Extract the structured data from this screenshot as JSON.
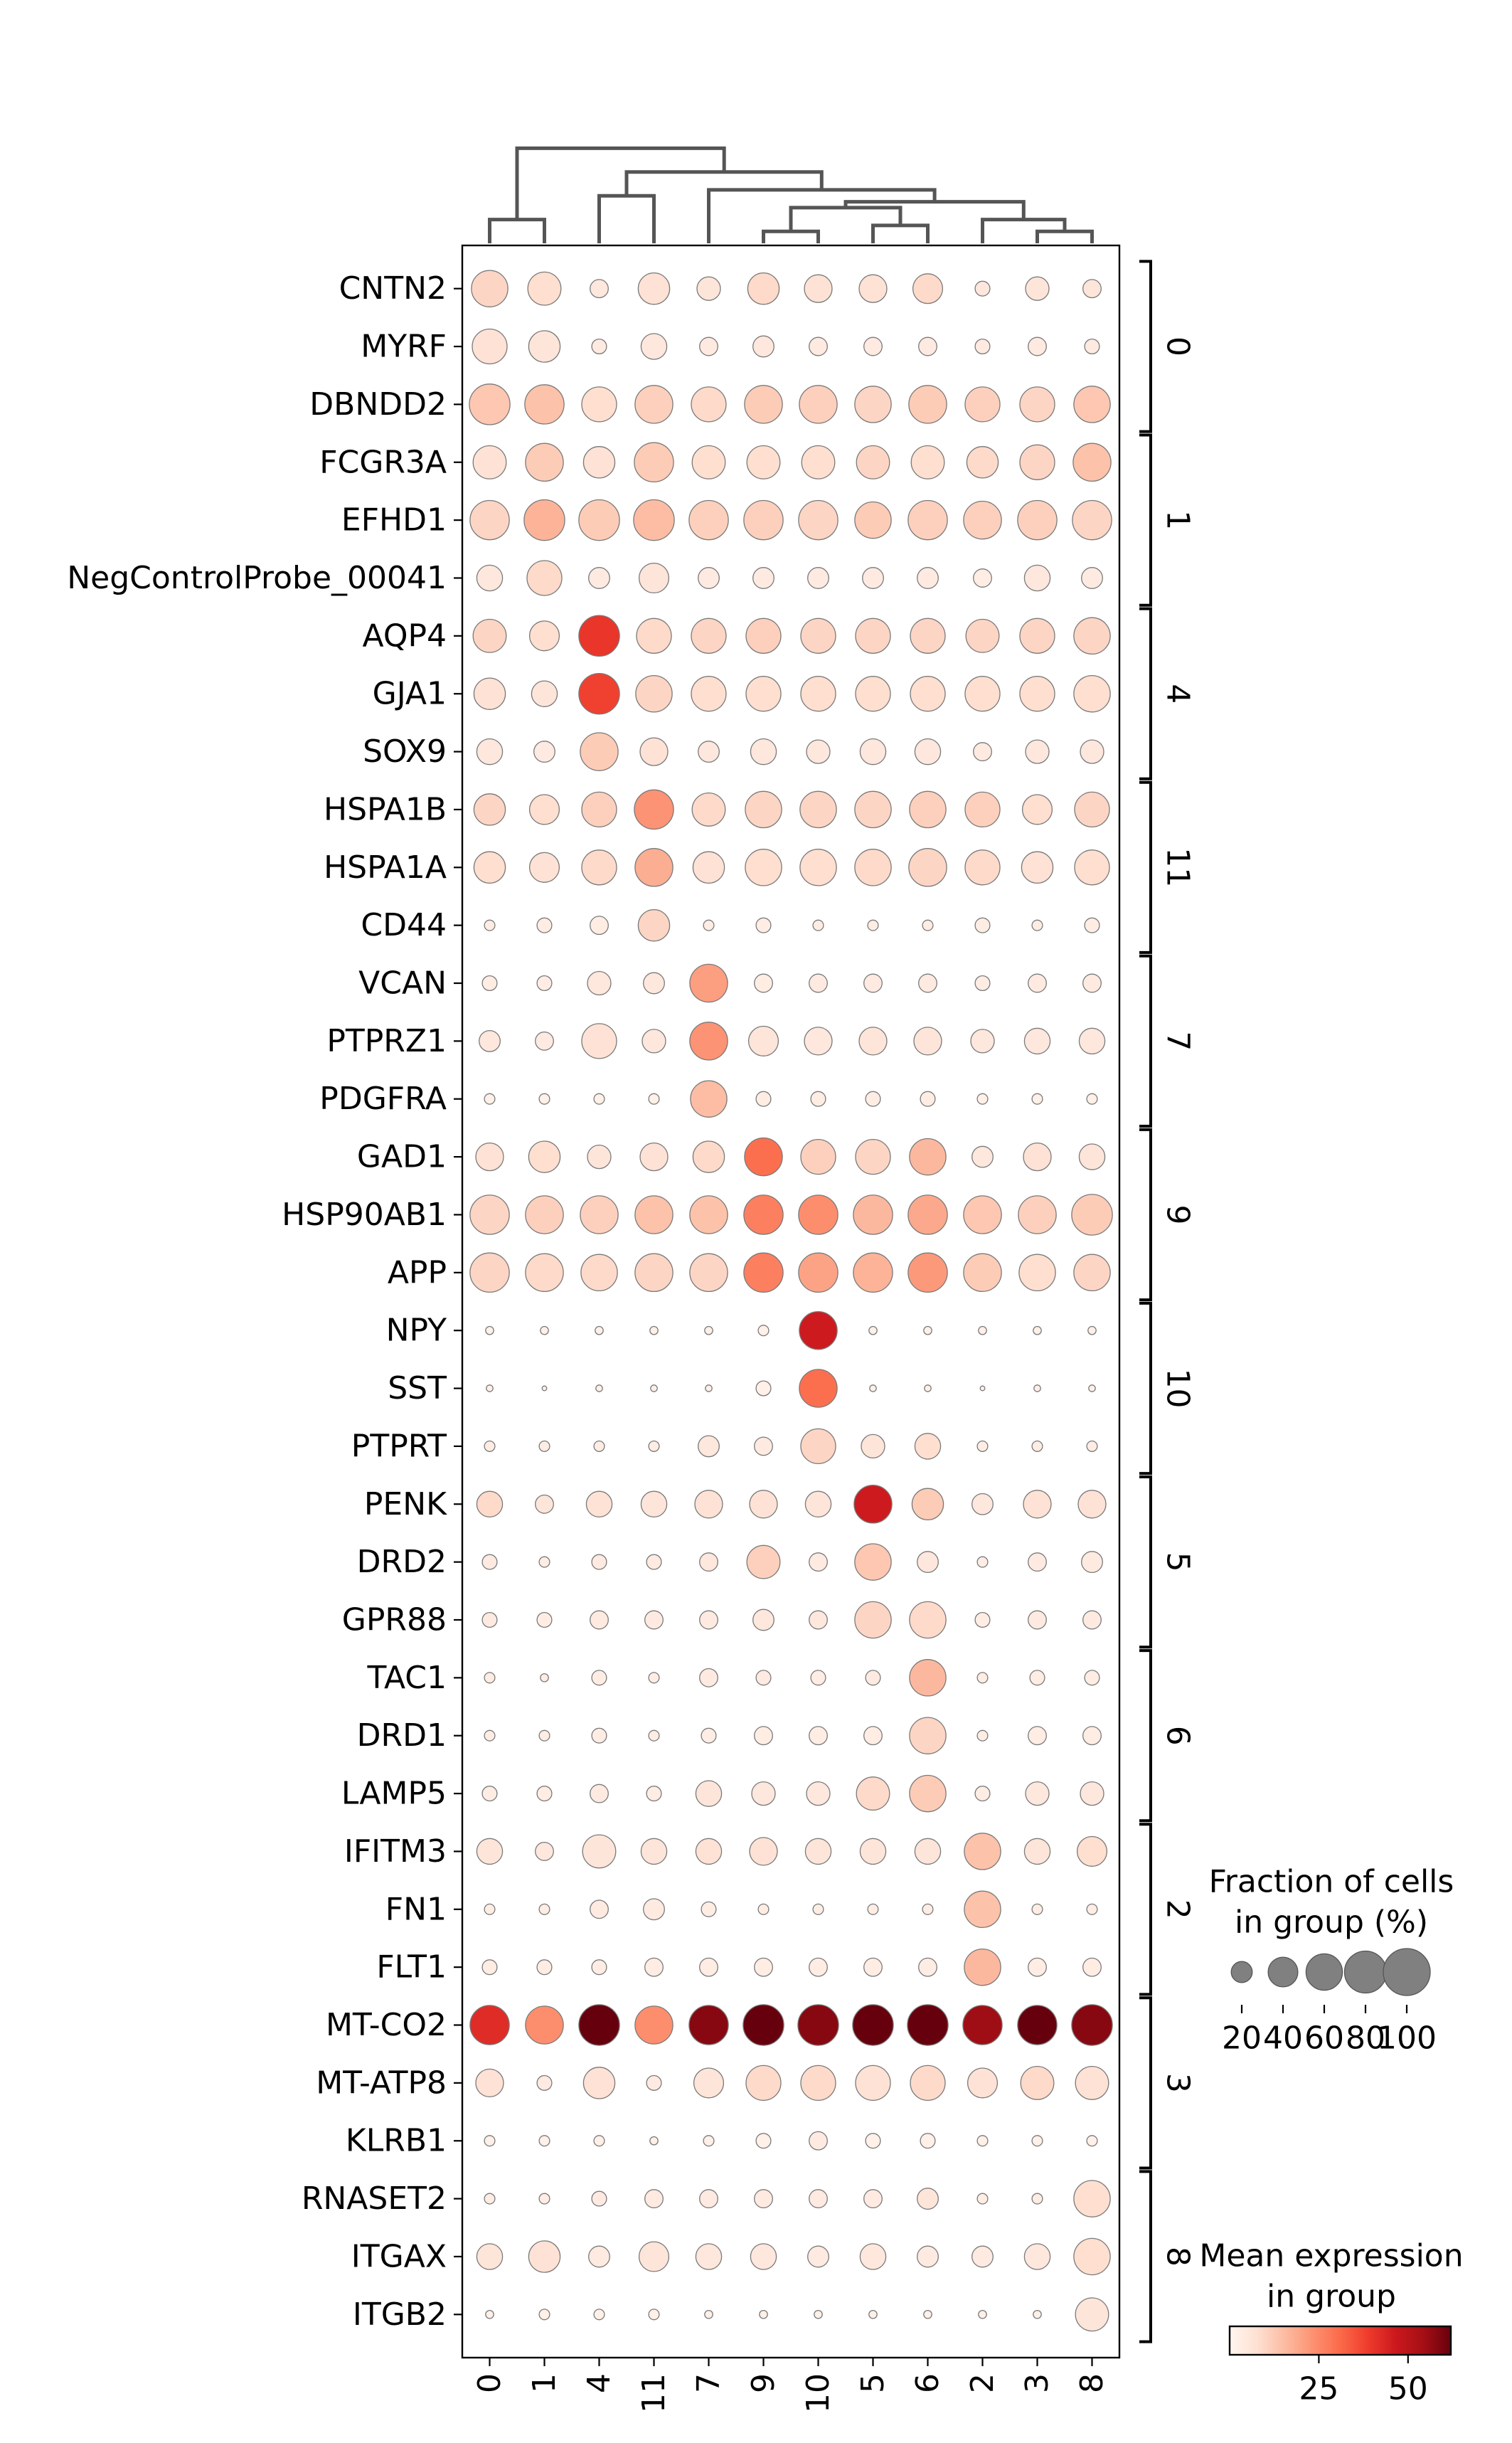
{
  "chart_data": {
    "type": "dotplot",
    "title": "",
    "xlabel": "",
    "ylabel": "",
    "x_categories": [
      "0",
      "1",
      "4",
      "11",
      "7",
      "9",
      "10",
      "5",
      "6",
      "2",
      "3",
      "8"
    ],
    "y_categories": [
      "CNTN2",
      "MYRF",
      "DBNDD2",
      "FCGR3A",
      "EFHD1",
      "NegControlProbe_00041",
      "AQP4",
      "GJA1",
      "SOX9",
      "HSPA1B",
      "HSPA1A",
      "CD44",
      "VCAN",
      "PTPRZ1",
      "PDGFRA",
      "GAD1",
      "HSP90AB1",
      "APP",
      "NPY",
      "SST",
      "PTPRT",
      "PENK",
      "DRD2",
      "GPR88",
      "TAC1",
      "DRD1",
      "LAMP5",
      "IFITM3",
      "FN1",
      "FLT1",
      "MT-CO2",
      "MT-ATP8",
      "KLRB1",
      "RNASET2",
      "ITGAX",
      "ITGB2"
    ],
    "gene_groups": [
      {
        "label": "0",
        "start": 0,
        "end": 2
      },
      {
        "label": "1",
        "start": 3,
        "end": 5
      },
      {
        "label": "4",
        "start": 6,
        "end": 8
      },
      {
        "label": "11",
        "start": 9,
        "end": 11
      },
      {
        "label": "7",
        "start": 12,
        "end": 14
      },
      {
        "label": "9",
        "start": 15,
        "end": 17
      },
      {
        "label": "10",
        "start": 18,
        "end": 20
      },
      {
        "label": "5",
        "start": 21,
        "end": 23
      },
      {
        "label": "6",
        "start": 24,
        "end": 26
      },
      {
        "label": "2",
        "start": 27,
        "end": 29
      },
      {
        "label": "3",
        "start": 30,
        "end": 32
      },
      {
        "label": "8",
        "start": 33,
        "end": 35
      }
    ],
    "fraction_percent": [
      [
        60,
        50,
        15,
        45,
        25,
        45,
        35,
        35,
        40,
        10,
        25,
        15
      ],
      [
        55,
        45,
        10,
        30,
        15,
        20,
        15,
        15,
        15,
        10,
        15,
        10
      ],
      [
        75,
        70,
        55,
        65,
        55,
        65,
        65,
        60,
        65,
        55,
        55,
        60
      ],
      [
        50,
        65,
        45,
        70,
        50,
        50,
        50,
        50,
        50,
        45,
        55,
        65
      ],
      [
        70,
        75,
        75,
        75,
        70,
        70,
        70,
        60,
        70,
        65,
        70,
        70
      ],
      [
        30,
        55,
        20,
        40,
        20,
        20,
        20,
        20,
        20,
        15,
        30,
        20
      ],
      [
        50,
        40,
        75,
        55,
        55,
        55,
        55,
        55,
        55,
        50,
        55,
        60
      ],
      [
        45,
        30,
        75,
        60,
        55,
        55,
        55,
        55,
        55,
        55,
        55,
        60
      ],
      [
        30,
        20,
        65,
        35,
        20,
        30,
        25,
        30,
        30,
        15,
        25,
        25
      ],
      [
        45,
        40,
        55,
        70,
        50,
        60,
        60,
        60,
        60,
        55,
        40,
        55
      ],
      [
        45,
        40,
        55,
        65,
        45,
        60,
        60,
        60,
        65,
        55,
        45,
        55
      ],
      [
        5,
        10,
        15,
        45,
        5,
        10,
        5,
        5,
        5,
        10,
        5,
        10
      ],
      [
        10,
        10,
        25,
        20,
        65,
        15,
        15,
        15,
        15,
        10,
        15,
        15
      ],
      [
        20,
        15,
        55,
        25,
        65,
        40,
        35,
        35,
        35,
        25,
        30,
        30
      ],
      [
        5,
        5,
        5,
        5,
        60,
        10,
        10,
        10,
        10,
        5,
        5,
        5
      ],
      [
        35,
        45,
        25,
        35,
        45,
        65,
        55,
        55,
        60,
        20,
        35,
        30
      ],
      [
        70,
        65,
        65,
        65,
        65,
        70,
        70,
        70,
        70,
        65,
        65,
        75
      ],
      [
        70,
        65,
        60,
        65,
        65,
        70,
        70,
        70,
        70,
        65,
        60,
        60
      ],
      [
        3,
        3,
        3,
        3,
        3,
        5,
        65,
        3,
        3,
        3,
        3,
        3
      ],
      [
        2,
        1,
        2,
        2,
        2,
        10,
        65,
        2,
        2,
        1,
        2,
        2
      ],
      [
        5,
        5,
        5,
        5,
        20,
        15,
        55,
        25,
        30,
        5,
        5,
        5
      ],
      [
        30,
        15,
        30,
        30,
        35,
        35,
        30,
        65,
        45,
        20,
        35,
        35
      ],
      [
        10,
        5,
        10,
        10,
        15,
        50,
        15,
        60,
        20,
        5,
        15,
        20
      ],
      [
        10,
        10,
        15,
        15,
        15,
        20,
        15,
        60,
        60,
        10,
        15,
        15
      ],
      [
        5,
        3,
        10,
        5,
        15,
        10,
        10,
        10,
        60,
        5,
        10,
        10
      ],
      [
        5,
        5,
        10,
        5,
        10,
        15,
        15,
        15,
        60,
        5,
        15,
        15
      ],
      [
        10,
        10,
        15,
        10,
        30,
        25,
        25,
        50,
        60,
        10,
        25,
        25
      ],
      [
        30,
        15,
        50,
        30,
        30,
        35,
        30,
        30,
        30,
        60,
        30,
        40
      ],
      [
        5,
        5,
        15,
        20,
        10,
        5,
        5,
        5,
        5,
        60,
        5,
        5
      ],
      [
        10,
        10,
        10,
        15,
        15,
        15,
        15,
        15,
        15,
        60,
        15,
        15
      ],
      [
        70,
        65,
        75,
        65,
        70,
        75,
        75,
        75,
        75,
        70,
        70,
        75
      ],
      [
        35,
        10,
        45,
        10,
        40,
        55,
        55,
        55,
        55,
        40,
        50,
        50
      ],
      [
        5,
        5,
        5,
        3,
        5,
        10,
        15,
        10,
        10,
        5,
        5,
        5
      ],
      [
        5,
        5,
        10,
        15,
        15,
        15,
        15,
        15,
        20,
        5,
        5,
        60
      ],
      [
        30,
        45,
        20,
        40,
        30,
        30,
        20,
        30,
        20,
        20,
        30,
        60
      ],
      [
        3,
        5,
        5,
        5,
        3,
        3,
        3,
        3,
        3,
        3,
        3,
        50
      ]
    ],
    "mean_expression": [
      [
        10,
        8,
        5,
        7,
        6,
        9,
        7,
        7,
        9,
        5,
        6,
        6
      ],
      [
        7,
        6,
        4,
        5,
        4,
        5,
        4,
        4,
        4,
        4,
        4,
        4
      ],
      [
        13,
        14,
        8,
        11,
        9,
        12,
        11,
        10,
        12,
        11,
        10,
        13
      ],
      [
        7,
        12,
        7,
        12,
        8,
        8,
        8,
        10,
        8,
        9,
        10,
        14
      ],
      [
        10,
        17,
        12,
        15,
        11,
        11,
        10,
        12,
        11,
        11,
        11,
        10
      ],
      [
        5,
        9,
        4,
        6,
        4,
        4,
        4,
        4,
        4,
        3,
        5,
        4
      ],
      [
        10,
        8,
        40,
        9,
        10,
        11,
        10,
        10,
        10,
        10,
        10,
        10
      ],
      [
        7,
        6,
        38,
        10,
        8,
        8,
        8,
        8,
        8,
        8,
        8,
        8
      ],
      [
        5,
        4,
        12,
        7,
        5,
        5,
        5,
        5,
        5,
        4,
        5,
        5
      ],
      [
        10,
        8,
        11,
        23,
        9,
        10,
        10,
        10,
        11,
        11,
        8,
        10
      ],
      [
        8,
        7,
        9,
        18,
        7,
        8,
        8,
        9,
        10,
        9,
        7,
        8
      ],
      [
        3,
        3,
        3,
        10,
        3,
        3,
        3,
        3,
        3,
        3,
        3,
        3
      ],
      [
        3,
        3,
        5,
        5,
        21,
        3,
        4,
        4,
        4,
        3,
        4,
        4
      ],
      [
        5,
        4,
        7,
        5,
        23,
        6,
        5,
        6,
        6,
        5,
        5,
        5
      ],
      [
        2,
        2,
        2,
        2,
        15,
        3,
        3,
        3,
        3,
        2,
        2,
        2
      ],
      [
        7,
        8,
        6,
        7,
        9,
        30,
        11,
        10,
        16,
        5,
        7,
        6
      ],
      [
        10,
        11,
        11,
        14,
        14,
        27,
        24,
        16,
        19,
        13,
        11,
        12
      ],
      [
        10,
        9,
        9,
        10,
        10,
        27,
        20,
        17,
        22,
        12,
        8,
        10
      ],
      [
        2,
        2,
        2,
        2,
        2,
        2,
        46,
        2,
        2,
        2,
        2,
        2
      ],
      [
        2,
        2,
        2,
        2,
        2,
        2,
        30,
        2,
        2,
        2,
        2,
        2
      ],
      [
        3,
        3,
        3,
        3,
        5,
        4,
        10,
        6,
        8,
        3,
        3,
        3
      ],
      [
        9,
        6,
        7,
        6,
        7,
        7,
        6,
        46,
        12,
        5,
        7,
        7
      ],
      [
        4,
        3,
        4,
        4,
        5,
        11,
        4,
        13,
        5,
        3,
        4,
        4
      ],
      [
        4,
        3,
        4,
        4,
        4,
        5,
        5,
        10,
        9,
        3,
        4,
        4
      ],
      [
        3,
        3,
        3,
        3,
        4,
        4,
        3,
        4,
        16,
        3,
        3,
        3
      ],
      [
        3,
        3,
        3,
        3,
        3,
        3,
        3,
        3,
        10,
        3,
        3,
        3
      ],
      [
        3,
        3,
        4,
        3,
        6,
        5,
        5,
        9,
        12,
        3,
        5,
        5
      ],
      [
        6,
        5,
        6,
        6,
        7,
        7,
        6,
        6,
        6,
        14,
        6,
        8
      ],
      [
        3,
        3,
        4,
        4,
        3,
        3,
        3,
        3,
        3,
        14,
        3,
        3
      ],
      [
        3,
        3,
        3,
        3,
        3,
        3,
        3,
        3,
        3,
        16,
        3,
        3
      ],
      [
        42,
        24,
        62,
        24,
        58,
        67,
        58,
        70,
        70,
        55,
        68,
        58
      ],
      [
        7,
        4,
        7,
        4,
        6,
        9,
        9,
        7,
        9,
        7,
        9,
        7
      ],
      [
        2,
        2,
        2,
        2,
        2,
        2,
        4,
        2,
        2,
        2,
        2,
        2
      ],
      [
        3,
        3,
        4,
        4,
        4,
        4,
        4,
        4,
        6,
        3,
        3,
        8
      ],
      [
        6,
        7,
        4,
        6,
        5,
        5,
        4,
        5,
        4,
        4,
        5,
        8
      ],
      [
        2,
        2,
        2,
        2,
        2,
        2,
        2,
        2,
        2,
        2,
        2,
        6
      ]
    ],
    "size_legend": {
      "title_lines": [
        "Fraction of cells",
        "in group (%)"
      ],
      "values": [
        20,
        40,
        60,
        80,
        100
      ],
      "tick_labels": [
        "20",
        "40",
        "60",
        "80",
        "100"
      ]
    },
    "color_legend": {
      "title_lines": [
        "Mean expression",
        "in group"
      ],
      "colormap": "Reds",
      "vmin": 0,
      "vmax": 62,
      "ticks": [
        25,
        50
      ],
      "tick_labels": [
        "25",
        "50"
      ]
    },
    "dendrogram": {
      "leaf_order": [
        "0",
        "1",
        "4",
        "11",
        "7",
        "9",
        "10",
        "5",
        "6",
        "2",
        "3",
        "8"
      ],
      "merges": [
        {
          "left": "0",
          "right": "1",
          "height": 0.2
        },
        {
          "left": "4",
          "right": "11",
          "height": 0.4
        },
        {
          "left": "9",
          "right": "10",
          "height": 0.1
        },
        {
          "left": "5",
          "right": "6",
          "height": 0.15
        },
        {
          "left": "3",
          "right": "8",
          "height": 0.1
        },
        {
          "left": "2",
          "right": "3+8",
          "height": 0.2
        },
        {
          "left": "9+10",
          "right": "5+6",
          "height": 0.3
        },
        {
          "left": "9+10+5+6",
          "right": "2+3+8",
          "height": 0.35
        },
        {
          "left": "7",
          "right": "9+10+5+6+2+3+8",
          "height": 0.45
        },
        {
          "left": "4+11",
          "right": "7+rest",
          "height": 0.6
        },
        {
          "left": "0+1",
          "right": "4+11+7+rest",
          "height": 0.8
        }
      ]
    }
  }
}
